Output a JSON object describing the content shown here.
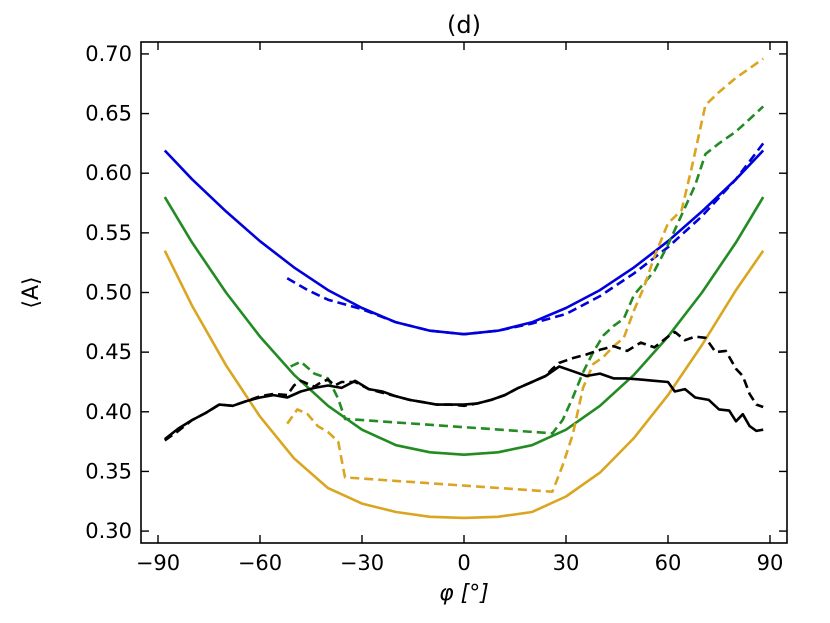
{
  "chart_data": {
    "type": "line",
    "title": "(d)",
    "xlabel": "φ [°]",
    "ylabel": "⟨A⟩",
    "xlim": [
      -95,
      95
    ],
    "ylim": [
      0.29,
      0.71
    ],
    "xticks": [
      -90,
      -60,
      -30,
      0,
      30,
      60,
      90
    ],
    "xtick_labels": [
      "−90",
      "−60",
      "−30",
      "0",
      "30",
      "60",
      "90"
    ],
    "yticks": [
      0.3,
      0.35,
      0.4,
      0.45,
      0.5,
      0.55,
      0.6,
      0.65,
      0.7
    ],
    "ytick_labels": [
      "0.30",
      "0.35",
      "0.40",
      "0.45",
      "0.50",
      "0.55",
      "0.60",
      "0.65",
      "0.70"
    ],
    "grid": false,
    "series": [
      {
        "name": "blue-solid",
        "color": "#0000dd",
        "style": "solid",
        "x": [
          -88,
          -80,
          -70,
          -60,
          -50,
          -40,
          -30,
          -20,
          -10,
          0,
          10,
          20,
          30,
          40,
          50,
          60,
          70,
          80,
          88
        ],
        "y": [
          0.619,
          0.595,
          0.568,
          0.543,
          0.521,
          0.502,
          0.487,
          0.475,
          0.468,
          0.465,
          0.468,
          0.475,
          0.487,
          0.502,
          0.521,
          0.543,
          0.568,
          0.595,
          0.619
        ]
      },
      {
        "name": "blue-dashed",
        "color": "#0000dd",
        "style": "dashed",
        "x": [
          -52,
          -46,
          -40,
          -35,
          -30,
          -20,
          -10,
          0,
          10,
          20,
          25,
          30,
          40,
          50,
          60,
          70,
          80,
          88
        ],
        "y": [
          0.512,
          0.502,
          0.494,
          0.49,
          0.486,
          0.475,
          0.468,
          0.465,
          0.468,
          0.474,
          0.478,
          0.482,
          0.497,
          0.516,
          0.538,
          0.564,
          0.595,
          0.625
        ]
      },
      {
        "name": "green-solid",
        "color": "#228b22",
        "style": "solid",
        "x": [
          -88,
          -80,
          -70,
          -60,
          -50,
          -40,
          -30,
          -20,
          -10,
          0,
          10,
          20,
          30,
          40,
          50,
          60,
          70,
          80,
          88
        ],
        "y": [
          0.58,
          0.542,
          0.5,
          0.463,
          0.431,
          0.405,
          0.385,
          0.372,
          0.366,
          0.364,
          0.366,
          0.372,
          0.385,
          0.405,
          0.431,
          0.463,
          0.5,
          0.542,
          0.58
        ]
      },
      {
        "name": "green-dashed",
        "color": "#228b22",
        "style": "dashed",
        "x": [
          -51,
          -48,
          -44,
          -40,
          -37,
          -35,
          26,
          29,
          32,
          35,
          38,
          41,
          44,
          47,
          50,
          53,
          56,
          60,
          64,
          68,
          71,
          75,
          80,
          85,
          88
        ],
        "y": [
          0.438,
          0.442,
          0.432,
          0.428,
          0.411,
          0.394,
          0.382,
          0.393,
          0.412,
          0.433,
          0.45,
          0.464,
          0.472,
          0.478,
          0.498,
          0.508,
          0.518,
          0.54,
          0.565,
          0.59,
          0.616,
          0.625,
          0.635,
          0.648,
          0.656
        ]
      },
      {
        "name": "gold-solid",
        "color": "#daa520",
        "style": "solid",
        "x": [
          -88,
          -80,
          -70,
          -60,
          -50,
          -40,
          -30,
          -20,
          -10,
          0,
          10,
          20,
          30,
          40,
          50,
          60,
          70,
          80,
          88
        ],
        "y": [
          0.535,
          0.489,
          0.439,
          0.396,
          0.361,
          0.336,
          0.323,
          0.316,
          0.312,
          0.311,
          0.312,
          0.316,
          0.329,
          0.349,
          0.378,
          0.414,
          0.456,
          0.502,
          0.535
        ]
      },
      {
        "name": "gold-dashed",
        "color": "#daa520",
        "style": "dashed",
        "x": [
          -52,
          -49,
          -46,
          -43,
          -40,
          -37,
          -35,
          26,
          29,
          32,
          35,
          38,
          41,
          44,
          47,
          50,
          53,
          56,
          60,
          64,
          67,
          71,
          75,
          80,
          85,
          88
        ],
        "y": [
          0.39,
          0.402,
          0.398,
          0.388,
          0.383,
          0.375,
          0.345,
          0.333,
          0.355,
          0.381,
          0.42,
          0.44,
          0.446,
          0.455,
          0.462,
          0.485,
          0.505,
          0.53,
          0.558,
          0.569,
          0.605,
          0.657,
          0.668,
          0.68,
          0.69,
          0.696
        ]
      },
      {
        "name": "black-solid",
        "color": "#000000",
        "style": "solid",
        "x": [
          -88,
          -84,
          -80,
          -76,
          -72,
          -68,
          -64,
          -60,
          -56,
          -52,
          -48,
          -44,
          -40,
          -36,
          -32,
          -28,
          -24,
          -20,
          -16,
          -12,
          -8,
          -4,
          0,
          4,
          8,
          12,
          16,
          20,
          24,
          28,
          32,
          36,
          40,
          44,
          48,
          52,
          56,
          60,
          62,
          65,
          68,
          72,
          75,
          78,
          80,
          82,
          84,
          86,
          88
        ],
        "y": [
          0.377,
          0.386,
          0.393,
          0.399,
          0.406,
          0.405,
          0.409,
          0.412,
          0.414,
          0.412,
          0.417,
          0.42,
          0.422,
          0.42,
          0.426,
          0.419,
          0.417,
          0.413,
          0.41,
          0.408,
          0.406,
          0.406,
          0.406,
          0.407,
          0.41,
          0.414,
          0.42,
          0.425,
          0.43,
          0.438,
          0.434,
          0.43,
          0.432,
          0.428,
          0.428,
          0.427,
          0.426,
          0.425,
          0.417,
          0.419,
          0.412,
          0.41,
          0.402,
          0.401,
          0.392,
          0.398,
          0.388,
          0.384,
          0.385
        ]
      },
      {
        "name": "black-dashed",
        "color": "#000000",
        "style": "dashed",
        "x": [
          -88,
          -84,
          -80,
          -76,
          -72,
          -68,
          -64,
          -60,
          -56,
          -52,
          -50,
          -48,
          -44,
          -42,
          -40,
          -38,
          -36,
          -32,
          -28,
          -24,
          -20,
          -16,
          -12,
          -8,
          -4,
          0,
          4,
          8,
          12,
          16,
          20,
          24,
          26,
          28,
          32,
          36,
          40,
          44,
          48,
          52,
          56,
          60,
          62,
          65,
          68,
          71,
          74,
          77,
          80,
          82,
          84,
          86,
          88
        ],
        "y": [
          0.376,
          0.384,
          0.393,
          0.399,
          0.406,
          0.405,
          0.409,
          0.413,
          0.415,
          0.414,
          0.422,
          0.426,
          0.421,
          0.425,
          0.427,
          0.422,
          0.425,
          0.425,
          0.419,
          0.416,
          0.413,
          0.41,
          0.408,
          0.406,
          0.406,
          0.405,
          0.407,
          0.41,
          0.414,
          0.42,
          0.425,
          0.43,
          0.436,
          0.441,
          0.445,
          0.448,
          0.452,
          0.455,
          0.451,
          0.458,
          0.454,
          0.463,
          0.467,
          0.46,
          0.463,
          0.462,
          0.45,
          0.451,
          0.436,
          0.43,
          0.415,
          0.406,
          0.404
        ]
      }
    ]
  }
}
